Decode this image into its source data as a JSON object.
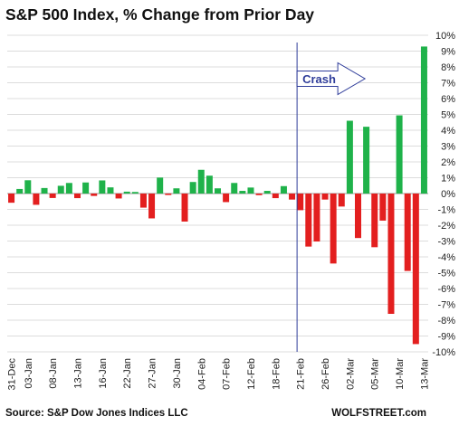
{
  "title": "S&P 500 Index, % Change from Prior Day",
  "source": "Source: S&P Dow Jones Indices LLC",
  "brand": "WOLFSTREET.com",
  "colors": {
    "up": "#1fb24a",
    "down": "#e31f1f",
    "annotation": "#2f3d9a",
    "grid": "#dcdcdc"
  },
  "chart_data": {
    "type": "bar",
    "ylim": [
      -10,
      10
    ],
    "y_tick_labels": [
      "10%",
      "9%",
      "8%",
      "7%",
      "6%",
      "5%",
      "4%",
      "3%",
      "2%",
      "1%",
      "0%",
      "-1%",
      "-2%",
      "-3%",
      "-4%",
      "-5%",
      "-6%",
      "-7%",
      "-8%",
      "-9%",
      "-10%"
    ],
    "x_tick_labels": [
      {
        "label": "31-Dec",
        "index": 0
      },
      {
        "label": "03-Jan",
        "index": 2
      },
      {
        "label": "08-Jan",
        "index": 5
      },
      {
        "label": "13-Jan",
        "index": 8
      },
      {
        "label": "16-Jan",
        "index": 11
      },
      {
        "label": "22-Jan",
        "index": 14
      },
      {
        "label": "27-Jan",
        "index": 17
      },
      {
        "label": "30-Jan",
        "index": 20
      },
      {
        "label": "04-Feb",
        "index": 23
      },
      {
        "label": "07-Feb",
        "index": 26
      },
      {
        "label": "12-Feb",
        "index": 29
      },
      {
        "label": "18-Feb",
        "index": 32
      },
      {
        "label": "21-Feb",
        "index": 35
      },
      {
        "label": "26-Feb",
        "index": 38
      },
      {
        "label": "02-Mar",
        "index": 41
      },
      {
        "label": "05-Mar",
        "index": 44
      },
      {
        "label": "10-Mar",
        "index": 47
      },
      {
        "label": "13-Mar",
        "index": 50
      }
    ],
    "values": [
      -0.58,
      0.29,
      0.84,
      -0.71,
      0.35,
      -0.28,
      0.49,
      0.67,
      -0.29,
      0.7,
      -0.15,
      0.83,
      0.39,
      -0.31,
      0.12,
      0.1,
      -0.89,
      -1.57,
      1.01,
      -0.09,
      0.33,
      -1.77,
      0.73,
      1.5,
      1.13,
      0.33,
      -0.54,
      0.67,
      0.17,
      0.38,
      -0.1,
      0.17,
      -0.29,
      0.47,
      -0.38,
      -1.05,
      -3.35,
      -3.03,
      -0.38,
      -4.42,
      -0.82,
      4.6,
      -2.81,
      4.22,
      -3.39,
      -1.71,
      -7.6,
      4.94,
      -4.89,
      -9.51,
      9.29
    ],
    "annotation": {
      "label": "Crash",
      "index": 35
    }
  }
}
